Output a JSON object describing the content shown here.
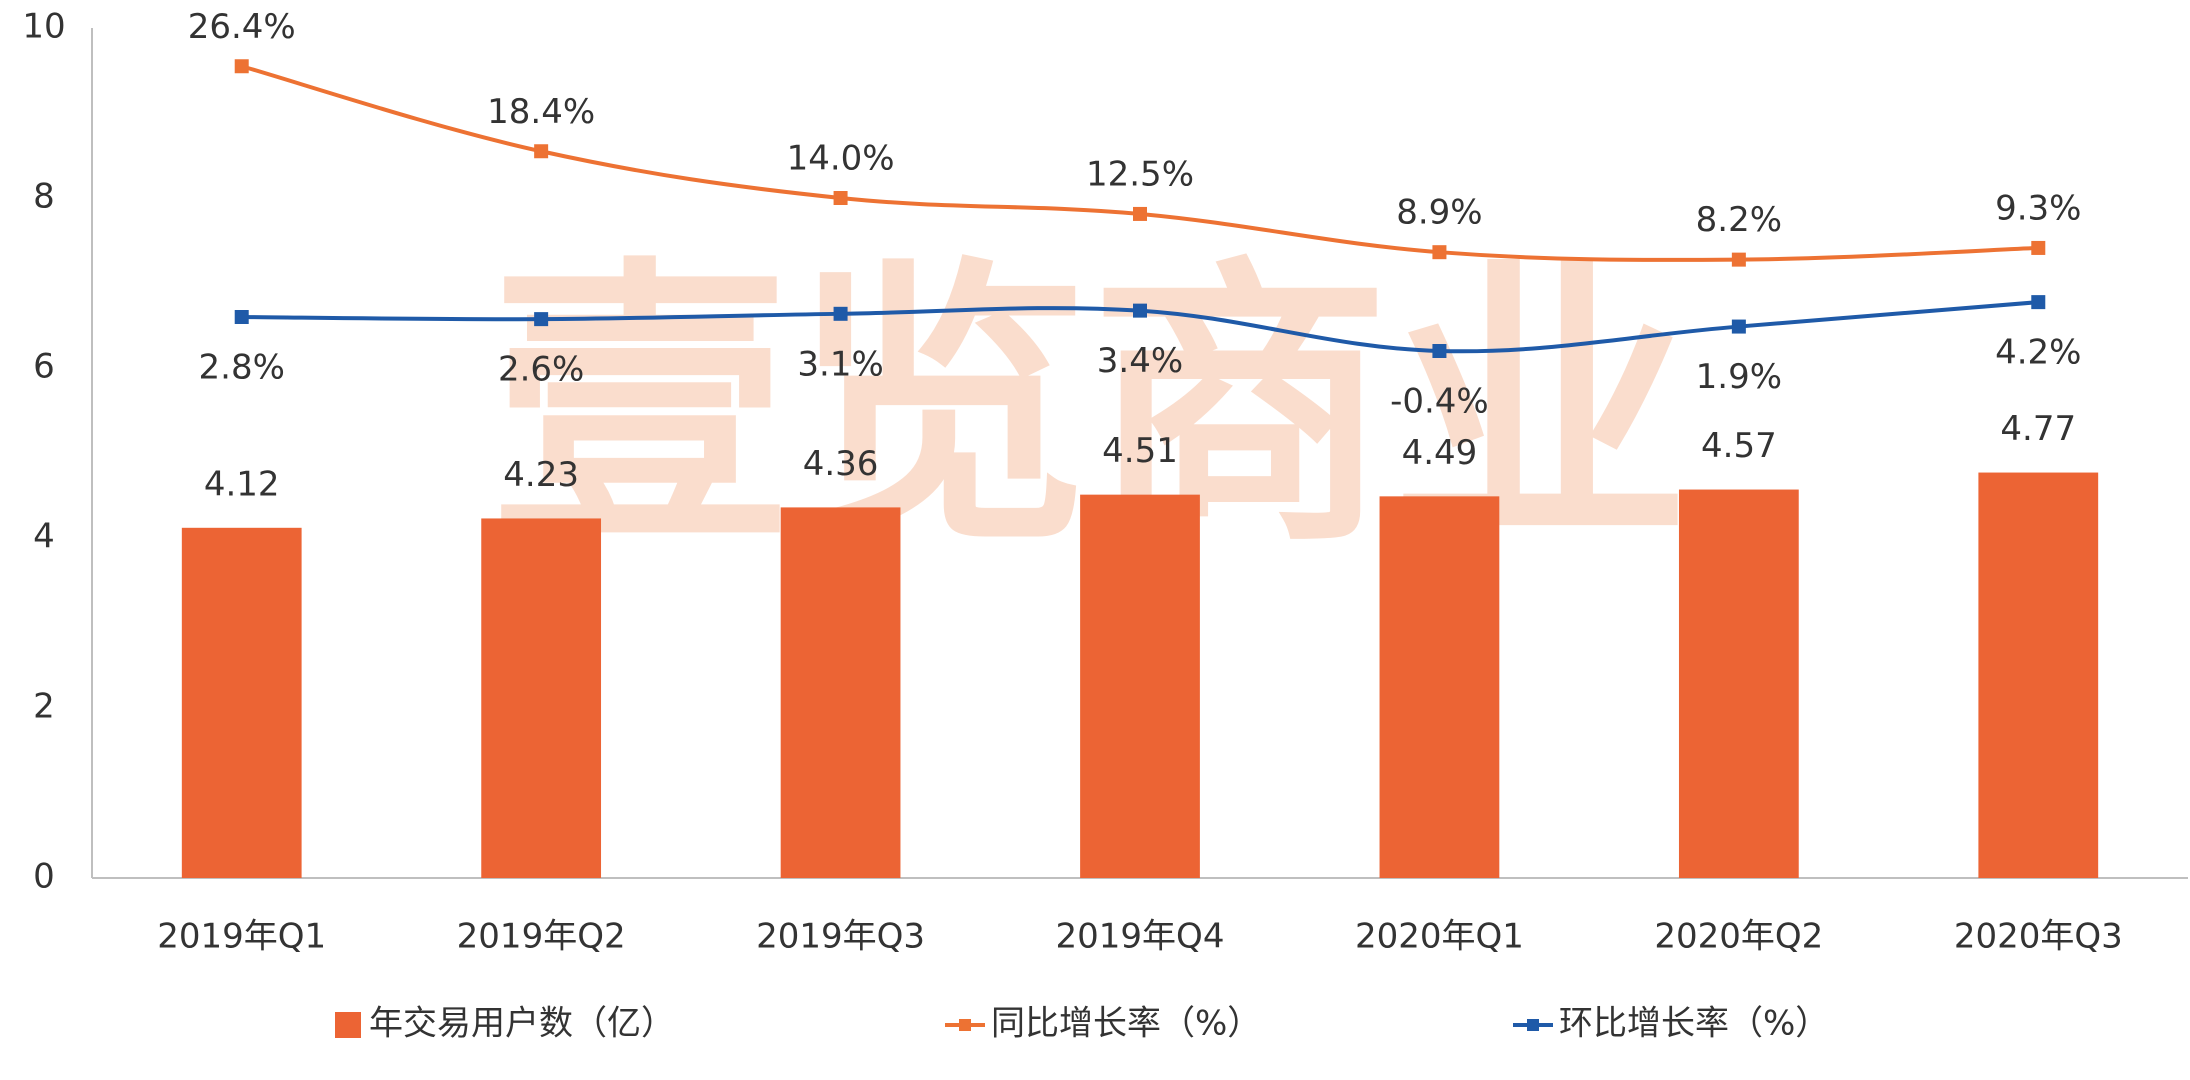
{
  "chart_data": {
    "type": "bar",
    "watermark": "壹览商业",
    "categories": [
      "2019年Q1",
      "2019年Q2",
      "2019年Q3",
      "2019年Q4",
      "2020年Q1",
      "2020年Q2",
      "2020年Q3"
    ],
    "ylim": [
      0,
      10
    ],
    "yticks": [
      0,
      2,
      4,
      6,
      8,
      10
    ],
    "y2lim": [
      -50,
      30
    ],
    "grid": false,
    "legend": "bottom",
    "series": [
      {
        "name": "年交易用户数（亿）",
        "type": "bar",
        "color": "#ec6434",
        "values": [
          4.12,
          4.23,
          4.36,
          4.51,
          4.49,
          4.57,
          4.77
        ]
      },
      {
        "name": "同比增长率（%）",
        "type": "line",
        "axis": "y2",
        "color": "#ed7233",
        "label_side": "above",
        "values": [
          26.4,
          18.4,
          14.0,
          12.5,
          8.9,
          8.2,
          9.3
        ],
        "value_labels": [
          "26.4%",
          "18.4%",
          "14.0%",
          "12.5%",
          "8.9%",
          "8.2%",
          "9.3%"
        ]
      },
      {
        "name": "环比增长率（%）",
        "type": "line",
        "axis": "y2",
        "color": "#1f5aa8",
        "label_side": "below",
        "values": [
          2.8,
          2.6,
          3.1,
          3.4,
          -0.4,
          1.9,
          4.2
        ],
        "value_labels": [
          "2.8%",
          "2.6%",
          "3.1%",
          "3.4%",
          "-0.4%",
          "1.9%",
          "4.2%"
        ]
      }
    ]
  }
}
